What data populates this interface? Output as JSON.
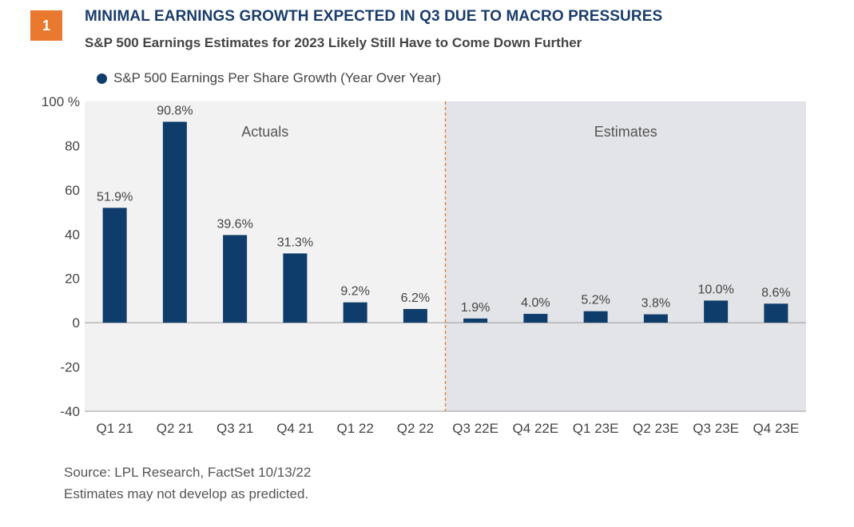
{
  "badge": "1",
  "title": "MINIMAL EARNINGS GROWTH EXPECTED IN Q3 DUE TO MACRO PRESSURES",
  "subtitle": "S&P 500 Earnings Estimates for 2023 Likely Still Have to Come Down Further",
  "notes": {
    "source": "Source: LPL Research, FactSet  10/13/22",
    "disclaimer": "Estimates may not develop as predicted."
  },
  "colors": {
    "bar": "#0f3d6b",
    "plot_background": "#f2f2f2",
    "estimates_background": "#e3e4e8",
    "divider": "#e8792e",
    "badge": "#e8792e"
  },
  "chart_data": {
    "type": "bar",
    "categories": [
      "Q1 21",
      "Q2 21",
      "Q3 21",
      "Q4 21",
      "Q1 22",
      "Q2 22",
      "Q3 22E",
      "Q4 22E",
      "Q1 23E",
      "Q2 23E",
      "Q3 23E",
      "Q4 23E"
    ],
    "series": [
      {
        "name": "S&P 500 Earnings Per Share Growth (Year Over Year)",
        "values": [
          51.9,
          90.8,
          39.6,
          31.3,
          9.2,
          6.2,
          1.9,
          4.0,
          5.2,
          3.8,
          10.0,
          8.6
        ]
      }
    ],
    "data_labels": [
      "51.9%",
      "90.8%",
      "39.6%",
      "31.3%",
      "9.2%",
      "6.2%",
      "1.9%",
      "4.0%",
      "5.2%",
      "3.8%",
      "10.0%",
      "8.6%"
    ],
    "ylim": [
      -40,
      100
    ],
    "yticks": [
      100,
      80,
      60,
      40,
      20,
      0,
      -20,
      -40
    ],
    "ytick_labels": [
      "100 %",
      "80",
      "60",
      "40",
      "20",
      "0",
      "-20",
      "-40"
    ],
    "regions": [
      {
        "label": "Actuals",
        "from": "Q1 21",
        "to": "Q2 22"
      },
      {
        "label": "Estimates",
        "from": "Q3 22E",
        "to": "Q4 23E"
      }
    ],
    "legend_position": "top-left",
    "grid": false
  }
}
